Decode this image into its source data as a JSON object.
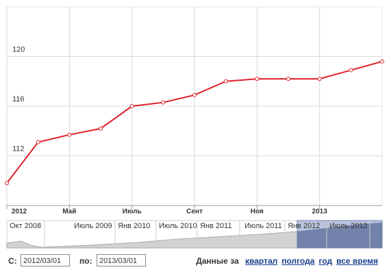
{
  "chart_data": {
    "type": "line",
    "categories": [
      "2012",
      null,
      "Май",
      null,
      "Июль",
      null,
      "Сент",
      null,
      "Ноя",
      null,
      "2013",
      null,
      null
    ],
    "series": [
      {
        "color": "#e0202a",
        "values": [
          109.8,
          113.1,
          113.7,
          114.2,
          116.0,
          116.3,
          116.9,
          118.0,
          118.2,
          118.2,
          118.2,
          118.9,
          119.6
        ]
      }
    ],
    "ylim": [
      108,
      124
    ],
    "yticks": [
      112,
      116,
      120
    ],
    "grid": true
  },
  "navigator": {
    "labels": [
      "Окт 2008",
      "Июль 2009",
      "Янв 2010",
      "Июль 2010",
      "Янв 2011",
      "Июль 2011",
      "Янв 2012",
      "Июль 2012"
    ]
  },
  "controls": {
    "from_label": "С:",
    "from_value": "2012/03/01",
    "to_label": "по:",
    "to_value": "2013/03/01",
    "range_label": "Данные за",
    "ranges": [
      "квартал",
      "полгода",
      "год",
      "все время"
    ]
  }
}
